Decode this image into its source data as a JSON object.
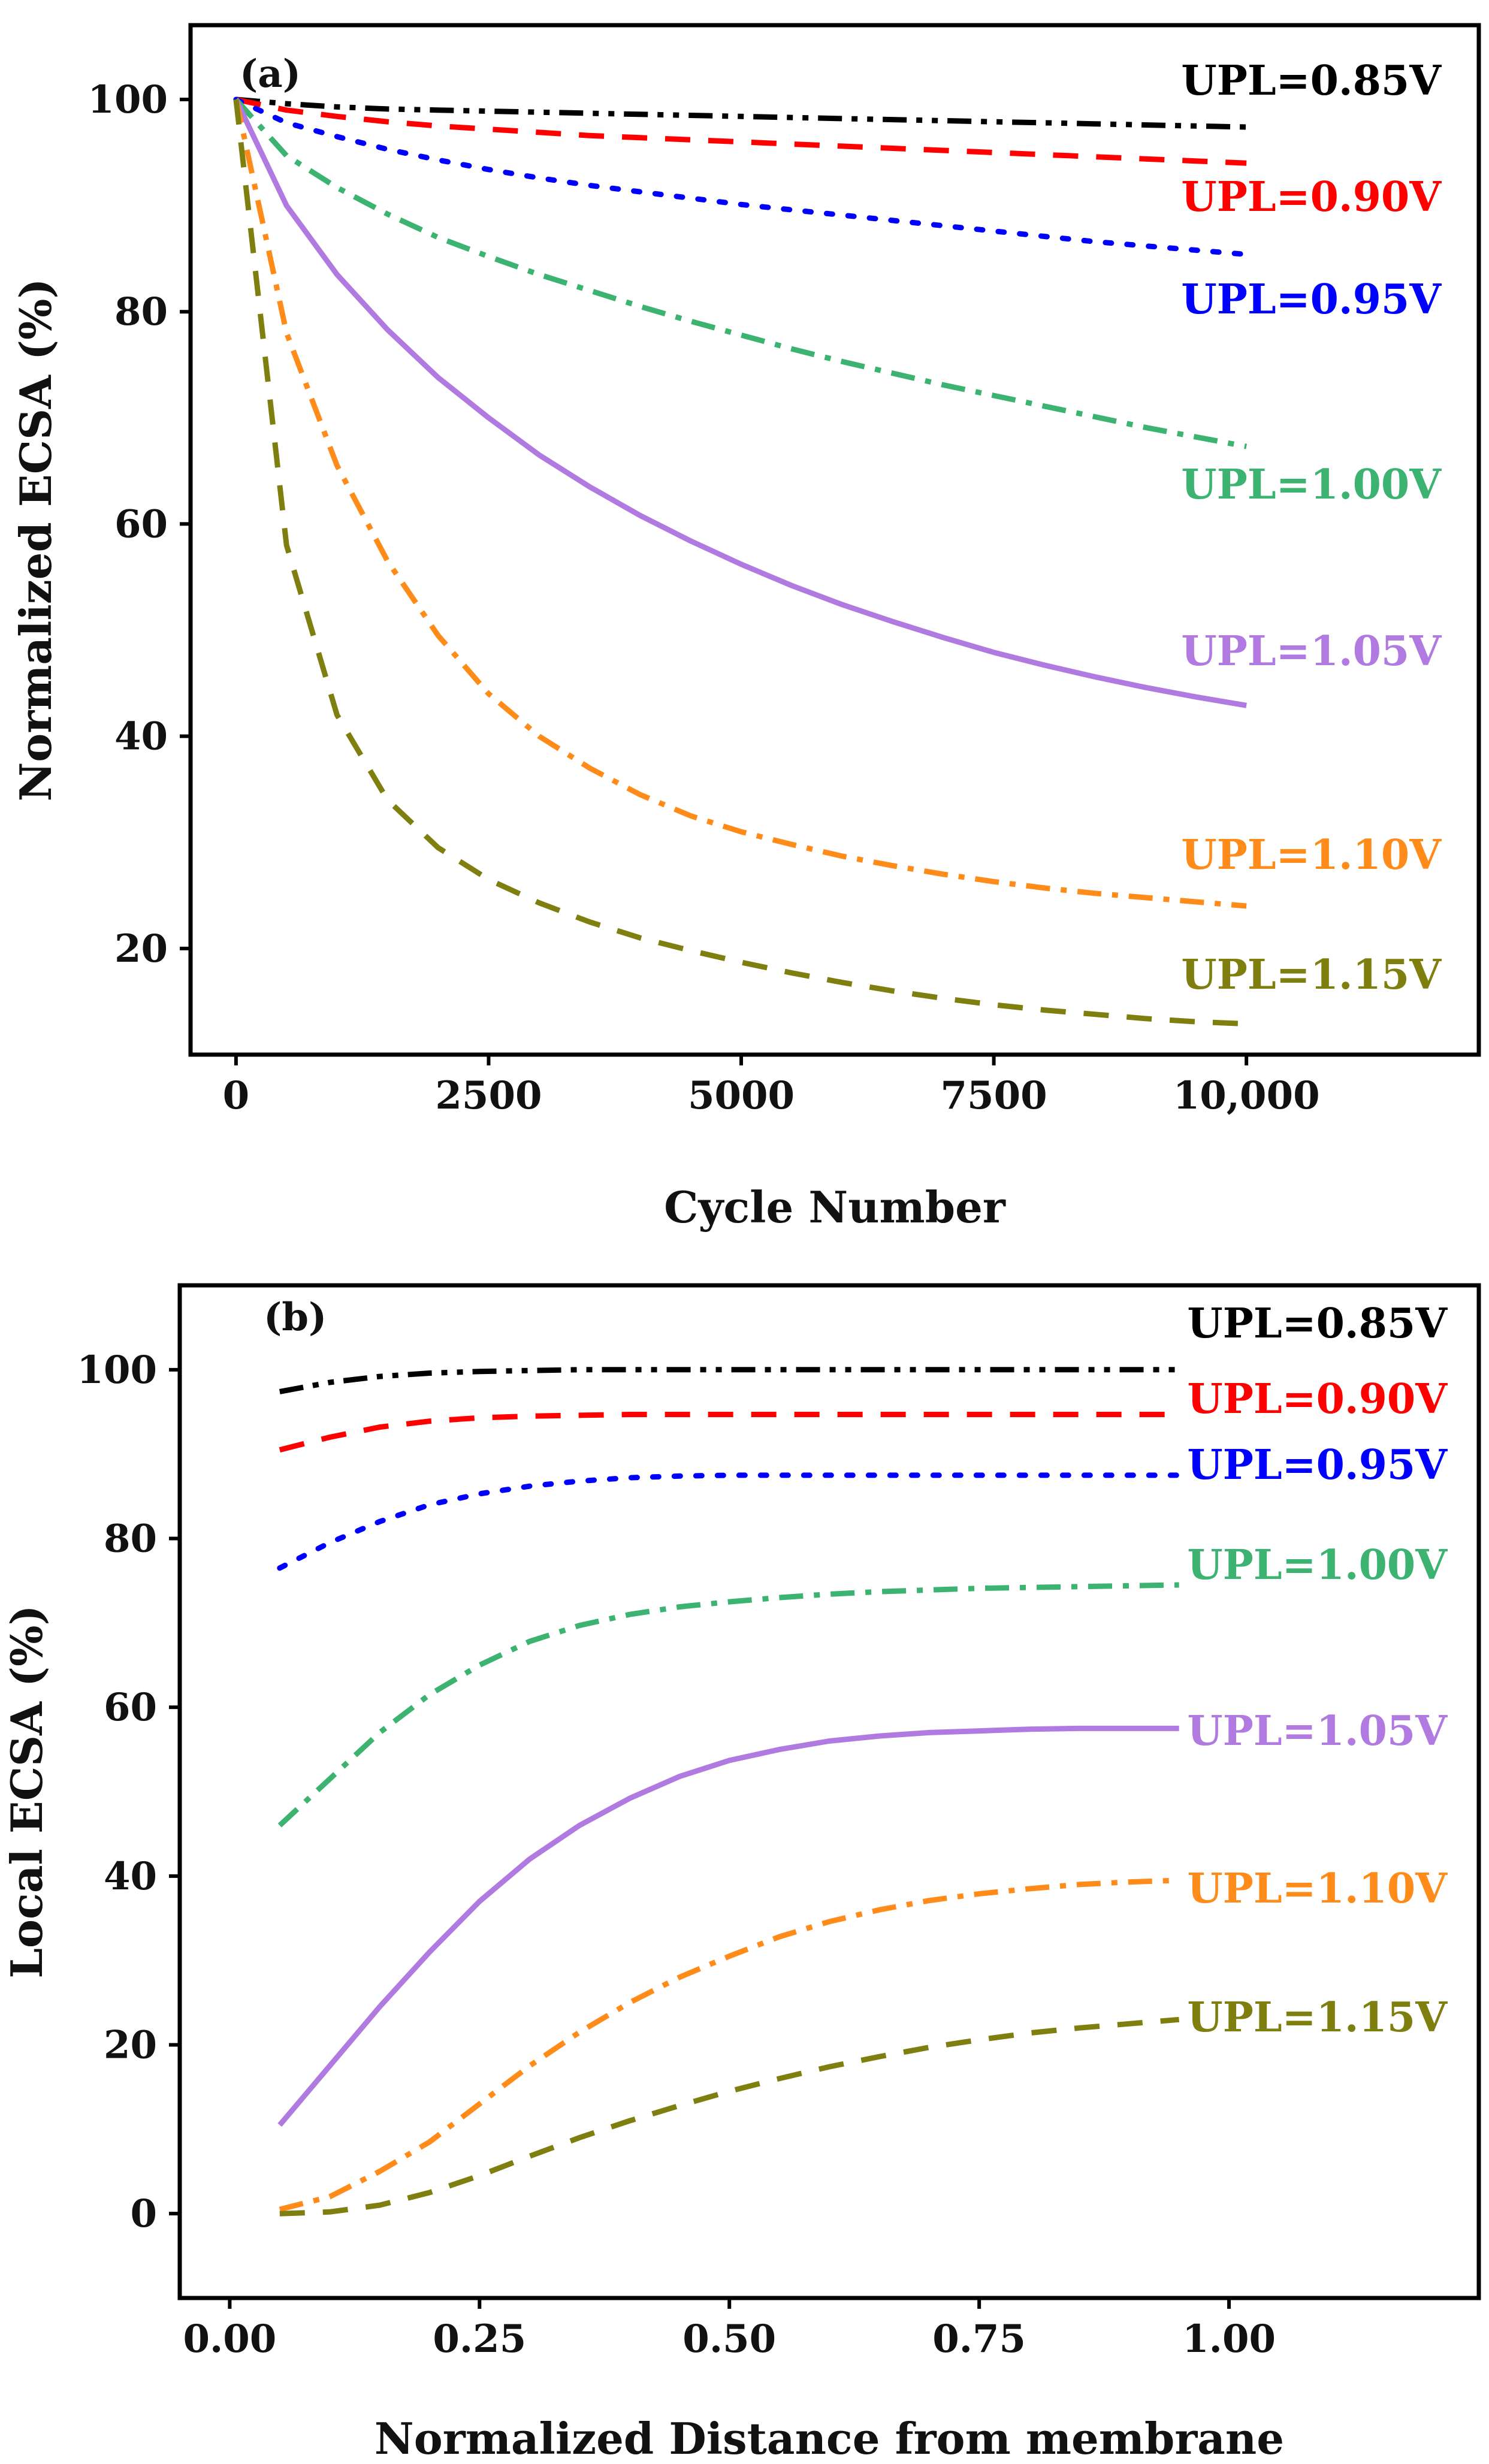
{
  "chart_data": [
    {
      "type": "line",
      "panel": "(a)",
      "xlabel": "Cycle Number",
      "ylabel": "Normalized ECSA (%)",
      "xlim": [
        -450,
        12300
      ],
      "ylim": [
        10,
        107
      ],
      "xticks": [
        0,
        2500,
        5000,
        7500,
        10000
      ],
      "xtick_labels": [
        "0",
        "2500",
        "5000",
        "7500",
        "10,000"
      ],
      "yticks": [
        20,
        40,
        60,
        80,
        100
      ],
      "ytick_labels": [
        "20",
        "40",
        "60",
        "80",
        "100"
      ],
      "x": [
        0,
        500,
        1000,
        1500,
        2000,
        2500,
        3000,
        3500,
        4000,
        4500,
        5000,
        5500,
        6000,
        6500,
        7000,
        7500,
        8000,
        8500,
        9000,
        9500,
        10000
      ],
      "series": [
        {
          "name": "UPL=0.85V",
          "label": "UPL=0.85V",
          "color": "#000000",
          "dash": "dashdotdot",
          "values": [
            100,
            99.6,
            99.3,
            99.1,
            99.0,
            98.9,
            98.8,
            98.7,
            98.6,
            98.5,
            98.4,
            98.3,
            98.2,
            98.1,
            98.0,
            97.9,
            97.8,
            97.7,
            97.6,
            97.5,
            97.4
          ]
        },
        {
          "name": "UPL=0.90V",
          "label": "UPL=0.90V",
          "color": "#ff0000",
          "dash": "dash",
          "values": [
            100,
            99.0,
            98.4,
            97.9,
            97.5,
            97.2,
            96.9,
            96.6,
            96.4,
            96.2,
            96.0,
            95.8,
            95.6,
            95.4,
            95.2,
            95.0,
            94.8,
            94.6,
            94.4,
            94.2,
            94.0
          ]
        },
        {
          "name": "UPL=0.95V",
          "label": "UPL=0.95V",
          "color": "#0000ff",
          "dash": "dot",
          "values": [
            100,
            97.8,
            96.5,
            95.3,
            94.3,
            93.4,
            92.6,
            91.9,
            91.3,
            90.7,
            90.1,
            89.6,
            89.1,
            88.6,
            88.1,
            87.6,
            87.1,
            86.6,
            86.2,
            85.8,
            85.4
          ]
        },
        {
          "name": "UPL=1.00V",
          "label": "UPL=1.00V",
          "color": "#3cb371",
          "dash": "dashdot",
          "values": [
            100,
            94.7,
            91.7,
            89.2,
            87.0,
            85.2,
            83.5,
            82.0,
            80.5,
            79.1,
            77.8,
            76.5,
            75.3,
            74.2,
            73.1,
            72.1,
            71.1,
            70.1,
            69.1,
            68.2,
            67.3
          ]
        },
        {
          "name": "UPL=1.05V",
          "label": "UPL=1.05V",
          "color": "#b07ae0",
          "dash": "solid",
          "values": [
            100,
            90.0,
            83.5,
            78.3,
            73.8,
            70.0,
            66.5,
            63.5,
            60.8,
            58.4,
            56.2,
            54.2,
            52.4,
            50.8,
            49.3,
            47.9,
            46.7,
            45.6,
            44.6,
            43.7,
            42.9
          ]
        },
        {
          "name": "UPL=1.10V",
          "label": "UPL=1.10V",
          "color": "#ff8c1a",
          "dash": "dashdot",
          "values": [
            100,
            78.0,
            65.5,
            56.5,
            49.5,
            44.0,
            40.0,
            37.0,
            34.5,
            32.5,
            31.0,
            29.8,
            28.7,
            27.8,
            27.0,
            26.3,
            25.7,
            25.2,
            24.8,
            24.4,
            24.0
          ]
        },
        {
          "name": "UPL=1.15V",
          "label": "UPL=1.15V",
          "color": "#7f7f10",
          "dash": "dash",
          "values": [
            100,
            58.0,
            42.0,
            34.0,
            29.5,
            26.5,
            24.3,
            22.5,
            21.0,
            19.8,
            18.7,
            17.7,
            16.8,
            16.0,
            15.3,
            14.7,
            14.2,
            13.8,
            13.4,
            13.1,
            12.9
          ]
        }
      ]
    },
    {
      "type": "line",
      "panel": "(b)",
      "xlabel": "Normalized Distance from membrane",
      "ylabel": "Local ECSA (%)",
      "xlim": [
        -0.05,
        1.25
      ],
      "ylim": [
        -10,
        110
      ],
      "xticks": [
        0.0,
        0.25,
        0.5,
        0.75,
        1.0
      ],
      "xtick_labels": [
        "0.00",
        "0.25",
        "0.50",
        "0.75",
        "1.00"
      ],
      "yticks": [
        0,
        20,
        40,
        60,
        80,
        100
      ],
      "ytick_labels": [
        "0",
        "20",
        "40",
        "60",
        "80",
        "100"
      ],
      "x": [
        0.05,
        0.1,
        0.15,
        0.2,
        0.25,
        0.3,
        0.35,
        0.4,
        0.45,
        0.5,
        0.55,
        0.6,
        0.65,
        0.7,
        0.75,
        0.8,
        0.85,
        0.9,
        0.95
      ],
      "series": [
        {
          "name": "UPL=0.85V",
          "label": "UPL=0.85V",
          "color": "#000000",
          "dash": "dashdotdot",
          "values": [
            97.4,
            98.5,
            99.2,
            99.6,
            99.8,
            99.9,
            100,
            100,
            100,
            100,
            100,
            100,
            100,
            100,
            100,
            100,
            100,
            100,
            100
          ]
        },
        {
          "name": "UPL=0.90V",
          "label": "UPL=0.90V",
          "color": "#ff0000",
          "dash": "dash",
          "values": [
            90.5,
            92.0,
            93.2,
            93.9,
            94.3,
            94.5,
            94.6,
            94.7,
            94.7,
            94.7,
            94.7,
            94.7,
            94.7,
            94.7,
            94.7,
            94.7,
            94.7,
            94.7,
            94.7
          ]
        },
        {
          "name": "UPL=0.95V",
          "label": "UPL=0.95V",
          "color": "#0000ff",
          "dash": "dot",
          "values": [
            76.5,
            79.5,
            82.0,
            84.0,
            85.3,
            86.2,
            86.8,
            87.2,
            87.4,
            87.5,
            87.5,
            87.5,
            87.5,
            87.5,
            87.5,
            87.5,
            87.5,
            87.5,
            87.5
          ]
        },
        {
          "name": "UPL=1.00V",
          "label": "UPL=1.00V",
          "color": "#3cb371",
          "dash": "dashdot",
          "values": [
            46.0,
            51.5,
            57.0,
            61.5,
            65.0,
            67.8,
            69.7,
            71.0,
            71.9,
            72.5,
            73.0,
            73.4,
            73.7,
            73.9,
            74.1,
            74.2,
            74.3,
            74.4,
            74.5
          ]
        },
        {
          "name": "UPL=1.05V",
          "label": "UPL=1.05V",
          "color": "#b07ae0",
          "dash": "solid",
          "values": [
            10.5,
            17.5,
            24.5,
            31.0,
            37.0,
            42.0,
            46.0,
            49.2,
            51.8,
            53.7,
            55.0,
            56.0,
            56.6,
            57.0,
            57.2,
            57.4,
            57.5,
            57.5,
            57.5
          ]
        },
        {
          "name": "UPL=1.10V",
          "label": "UPL=1.10V",
          "color": "#ff8c1a",
          "dash": "dashdot",
          "values": [
            0.5,
            2.0,
            5.0,
            8.5,
            13.0,
            17.5,
            21.5,
            25.0,
            28.0,
            30.5,
            32.8,
            34.6,
            36.0,
            37.1,
            37.9,
            38.5,
            39.0,
            39.3,
            39.5
          ]
        },
        {
          "name": "UPL=1.15V",
          "label": "UPL=1.15V",
          "color": "#7f7f10",
          "dash": "dash",
          "values": [
            0.0,
            0.2,
            1.0,
            2.5,
            4.5,
            6.8,
            9.0,
            11.0,
            12.8,
            14.5,
            16.0,
            17.4,
            18.6,
            19.7,
            20.6,
            21.4,
            22.0,
            22.5,
            23.0
          ]
        }
      ]
    }
  ]
}
